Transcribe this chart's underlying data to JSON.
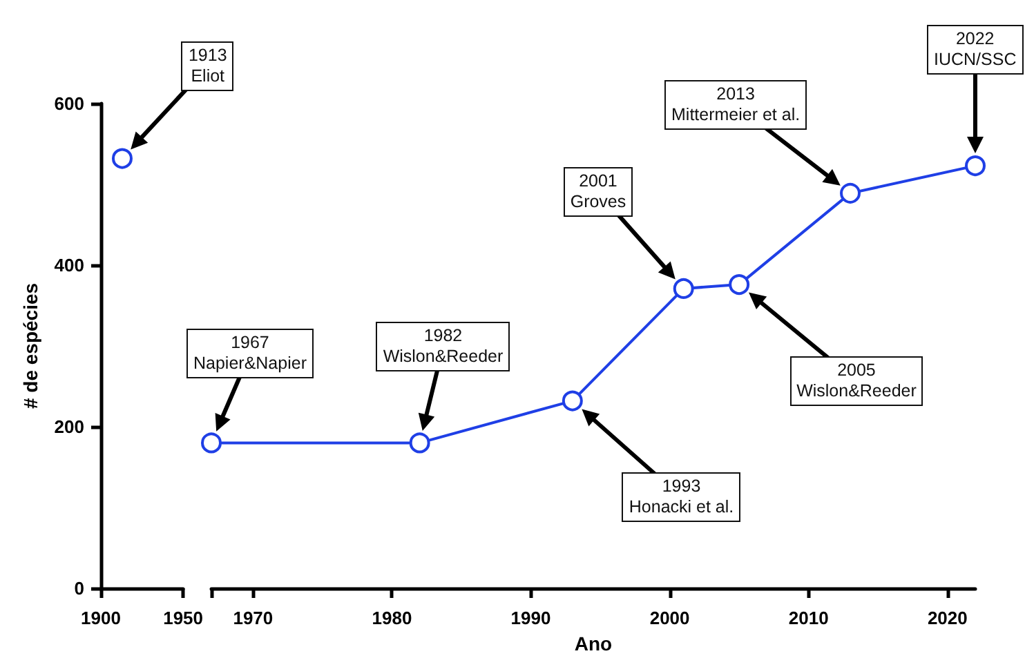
{
  "chart_data": [
    {
      "type": "line",
      "ylabel": "# de espécies",
      "xlim": [
        1900,
        1950
      ],
      "xticks": [
        1900,
        1950
      ],
      "ylim": [
        0,
        600
      ],
      "yticks": [
        0,
        200,
        400,
        600
      ],
      "marker": "circle",
      "series": [
        {
          "color": "#1f3fe6",
          "x": [
            1913
          ],
          "values": [
            532
          ]
        }
      ],
      "annotations": [
        "1913\nEliot"
      ]
    },
    {
      "type": "line",
      "xlabel": "Ano",
      "xlim": [
        1967,
        2022
      ],
      "xticks": [
        {
          "value": 1967,
          "label": null
        },
        1970,
        1980,
        1990,
        2000,
        2010,
        2020
      ],
      "ylim": [
        0,
        600
      ],
      "yticks": [
        0,
        200,
        400,
        600
      ],
      "tick_labels": "x",
      "marker": "circle",
      "series": [
        {
          "color": "#1f3fe6",
          "x": [
            1967,
            1982,
            1993,
            2001,
            2005,
            2013,
            2022
          ],
          "values": [
            180,
            180,
            232,
            371,
            376,
            489,
            523
          ]
        }
      ],
      "annotations": [
        "1967\nNapier&Napier",
        "1982\nWislon&Reeder",
        "1993\nHonacki et al.",
        "2001\nGroves",
        "2005\nWislon&Reeder",
        "2013\nMittermeier et al.",
        "2022\nIUCN/SSC"
      ]
    }
  ]
}
